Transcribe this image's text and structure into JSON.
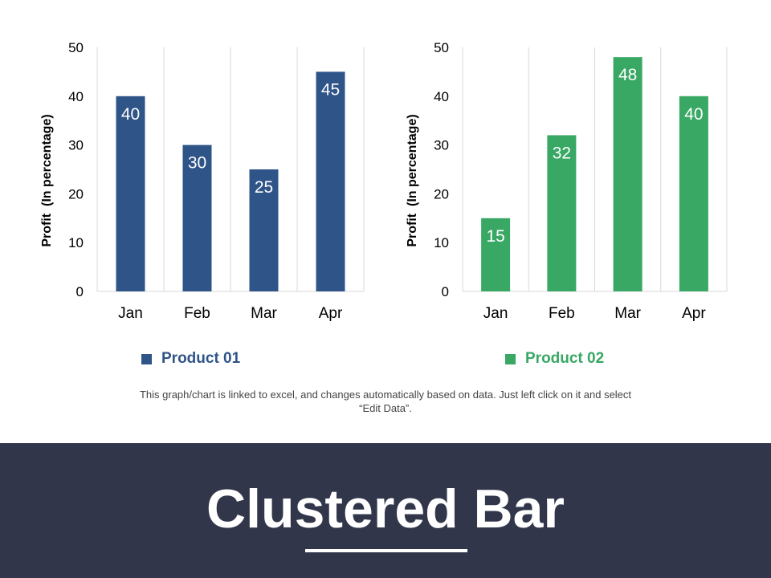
{
  "chart_data": [
    {
      "type": "bar",
      "categories": [
        "Jan",
        "Feb",
        "Mar",
        "Apr"
      ],
      "series": [
        {
          "name": "Product 01",
          "values": [
            40,
            30,
            25,
            45
          ],
          "color": "#2F5488"
        }
      ],
      "ylabel": "Profit  (In percentage)",
      "ylim": [
        0,
        50
      ],
      "yticks": [
        0,
        10,
        20,
        30,
        40,
        50
      ],
      "grid": "vertical",
      "legend": "bottom"
    },
    {
      "type": "bar",
      "categories": [
        "Jan",
        "Feb",
        "Mar",
        "Apr"
      ],
      "series": [
        {
          "name": "Product 02",
          "values": [
            15,
            32,
            48,
            40
          ],
          "color": "#38A864"
        }
      ],
      "ylabel": "Profit  (In percentage)",
      "ylim": [
        0,
        50
      ],
      "yticks": [
        0,
        10,
        20,
        30,
        40,
        50
      ],
      "grid": "vertical",
      "legend": "bottom"
    }
  ],
  "note": "This graph/chart is linked to excel, and changes automatically based on data. Just left click on it and select “Edit Data”.",
  "footer": {
    "title": "Clustered Bar",
    "background": "#31364A"
  }
}
